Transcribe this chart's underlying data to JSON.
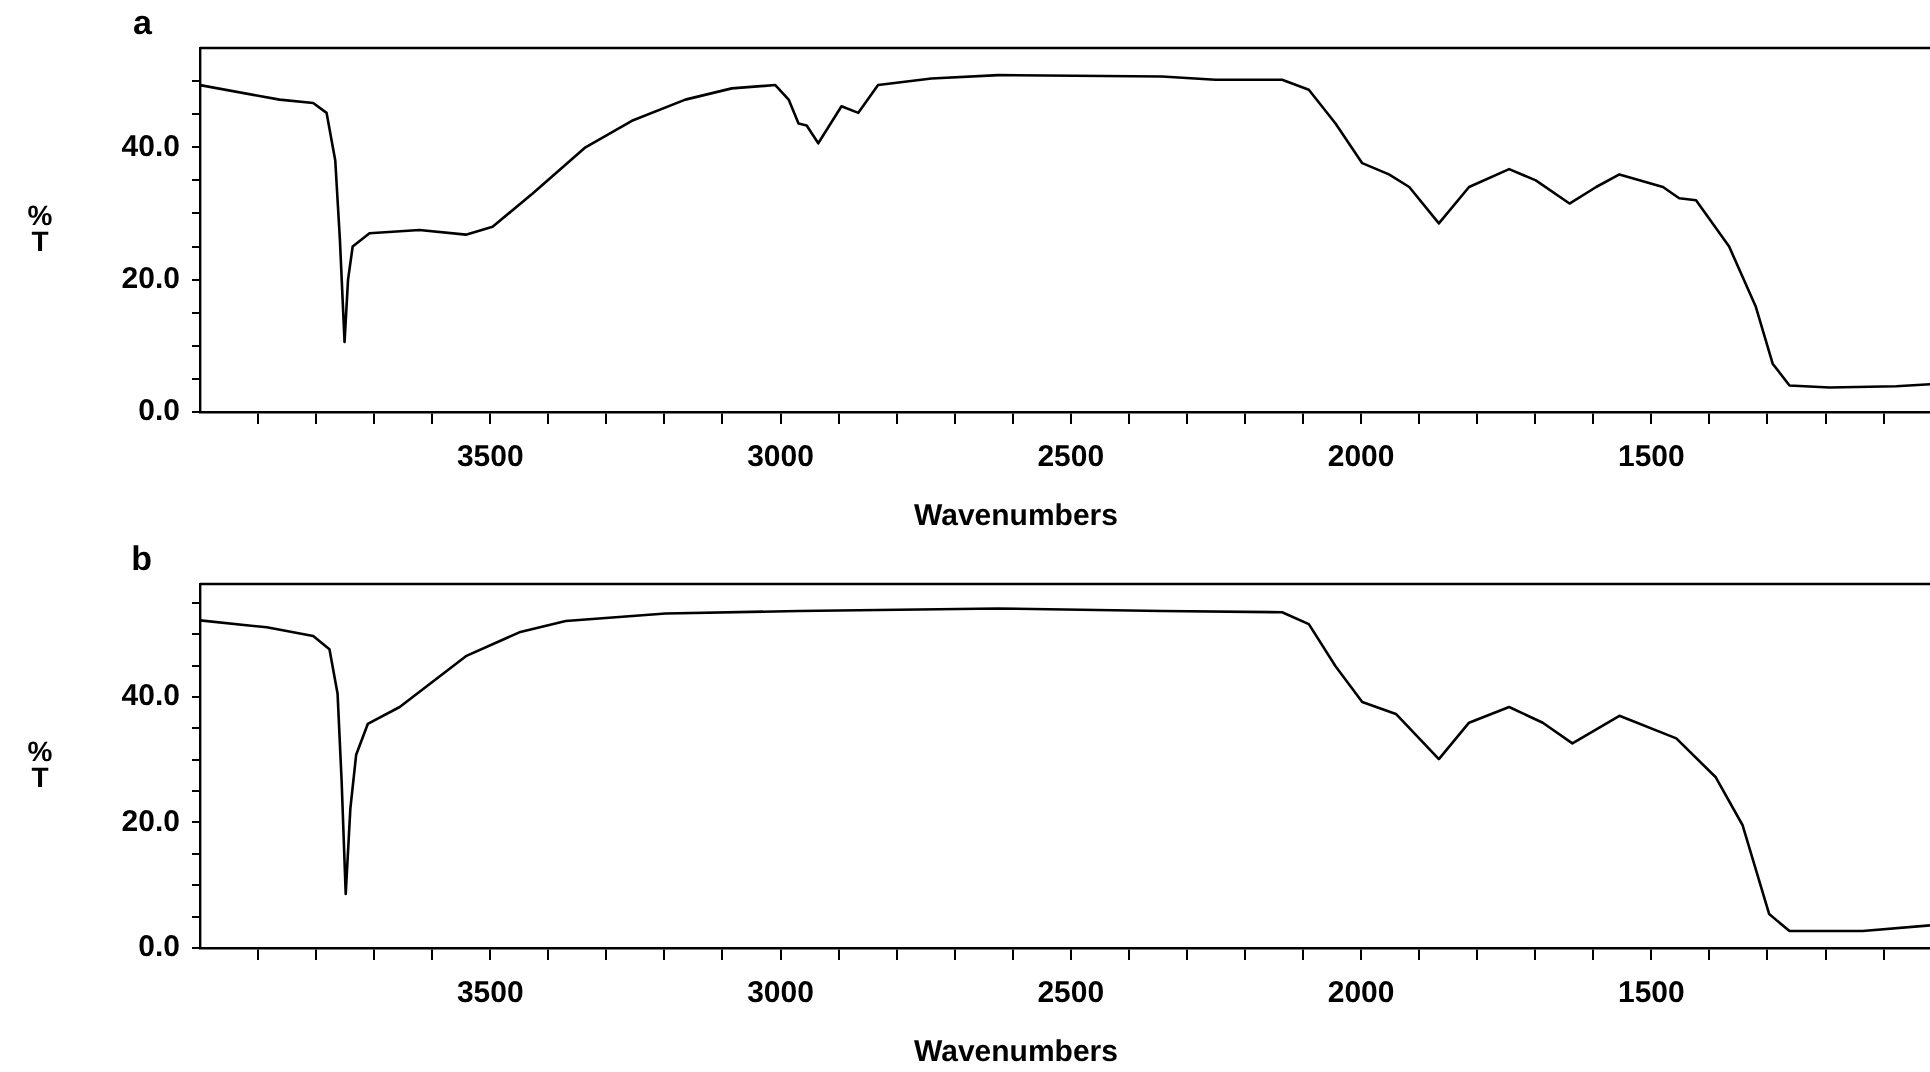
{
  "chart_data": [
    {
      "type": "line",
      "title": "a",
      "xlabel": "Wavenumbers",
      "ylabel": "%T",
      "xlim": [
        4000,
        1020
      ],
      "ylim": [
        0,
        55
      ],
      "grid": false,
      "legend": false,
      "marker": "none",
      "line_style": "solid",
      "xticks": [
        {
          "value": 3900,
          "label": null
        },
        {
          "value": 3800,
          "label": null
        },
        {
          "value": 3700,
          "label": null
        },
        {
          "value": 3600,
          "label": null
        },
        3500,
        {
          "value": 3400,
          "label": null
        },
        {
          "value": 3300,
          "label": null
        },
        {
          "value": 3200,
          "label": null
        },
        {
          "value": 3100,
          "label": null
        },
        3000,
        {
          "value": 2900,
          "label": null
        },
        {
          "value": 2800,
          "label": null
        },
        {
          "value": 2700,
          "label": null
        },
        {
          "value": 2600,
          "label": null
        },
        2500,
        {
          "value": 2400,
          "label": null
        },
        {
          "value": 2300,
          "label": null
        },
        {
          "value": 2200,
          "label": null
        },
        {
          "value": 2100,
          "label": null
        },
        2000,
        {
          "value": 1900,
          "label": null
        },
        {
          "value": 1800,
          "label": null
        },
        {
          "value": 1700,
          "label": null
        },
        {
          "value": 1600,
          "label": null
        },
        1500,
        {
          "value": 1400,
          "label": null
        },
        {
          "value": 1300,
          "label": null
        },
        {
          "value": 1200,
          "label": null
        },
        {
          "value": 1100,
          "label": null
        }
      ],
      "yticks": [
        {
          "value": 0,
          "label": "0.0"
        },
        {
          "value": 5,
          "label": null
        },
        {
          "value": 10,
          "label": null
        },
        {
          "value": 15,
          "label": null
        },
        {
          "value": 20,
          "label": "20.0"
        },
        {
          "value": 25,
          "label": null
        },
        {
          "value": 30,
          "label": null
        },
        {
          "value": 35,
          "label": null
        },
        {
          "value": 40,
          "label": "40.0"
        },
        {
          "value": 45,
          "label": null
        },
        {
          "value": 50,
          "label": null
        }
      ],
      "series": [
        {
          "color": "#000000",
          "x": [
            4000,
            3863,
            3805,
            3782,
            3767,
            3759,
            3751,
            3745,
            3737,
            3708,
            3622,
            3542,
            3496,
            3427,
            3336,
            3256,
            3164,
            3084,
            3009,
            2986,
            2969,
            2955,
            2935,
            2895,
            2866,
            2832,
            2740,
            2625,
            2343,
            2251,
            2136,
            2090,
            2044,
            1998,
            1952,
            1917,
            1866,
            1814,
            1745,
            1699,
            1641,
            1595,
            1555,
            1480,
            1452,
            1423,
            1366,
            1320,
            1291,
            1262,
            1193,
            1078,
            1020
          ],
          "values": [
            49.4,
            47.2,
            46.7,
            45.2,
            38,
            26,
            10.6,
            20,
            25,
            27,
            27.5,
            26.8,
            28,
            33,
            40,
            44,
            47.2,
            48.9,
            49.4,
            47.2,
            43.6,
            43.3,
            40.6,
            46.2,
            45.2,
            49.4,
            50.4,
            50.9,
            50.7,
            50.2,
            50.2,
            48.7,
            43.6,
            37.6,
            35.9,
            34,
            28.5,
            34,
            36.7,
            35,
            31.5,
            34,
            35.9,
            34,
            32.3,
            32,
            25,
            15.9,
            7.3,
            4,
            3.7,
            3.9,
            4.2
          ]
        }
      ]
    },
    {
      "type": "line",
      "title": "b",
      "xlabel": "Wavenumbers",
      "ylabel": "%T",
      "xlim": [
        4000,
        1020
      ],
      "ylim": [
        0,
        58
      ],
      "grid": false,
      "legend": false,
      "marker": "none",
      "line_style": "solid",
      "xticks": [
        {
          "value": 3900,
          "label": null
        },
        {
          "value": 3800,
          "label": null
        },
        {
          "value": 3700,
          "label": null
        },
        {
          "value": 3600,
          "label": null
        },
        3500,
        {
          "value": 3400,
          "label": null
        },
        {
          "value": 3300,
          "label": null
        },
        {
          "value": 3200,
          "label": null
        },
        {
          "value": 3100,
          "label": null
        },
        3000,
        {
          "value": 2900,
          "label": null
        },
        {
          "value": 2800,
          "label": null
        },
        {
          "value": 2700,
          "label": null
        },
        {
          "value": 2600,
          "label": null
        },
        2500,
        {
          "value": 2400,
          "label": null
        },
        {
          "value": 2300,
          "label": null
        },
        {
          "value": 2200,
          "label": null
        },
        {
          "value": 2100,
          "label": null
        },
        2000,
        {
          "value": 1900,
          "label": null
        },
        {
          "value": 1800,
          "label": null
        },
        {
          "value": 1700,
          "label": null
        },
        {
          "value": 1600,
          "label": null
        },
        1500,
        {
          "value": 1400,
          "label": null
        },
        {
          "value": 1300,
          "label": null
        },
        {
          "value": 1200,
          "label": null
        },
        {
          "value": 1100,
          "label": null
        }
      ],
      "yticks": [
        {
          "value": 0,
          "label": "0.0"
        },
        {
          "value": 5,
          "label": null
        },
        {
          "value": 10,
          "label": null
        },
        {
          "value": 15,
          "label": null
        },
        {
          "value": 20,
          "label": "20.0"
        },
        {
          "value": 25,
          "label": null
        },
        {
          "value": 30,
          "label": null
        },
        {
          "value": 35,
          "label": null
        },
        {
          "value": 40,
          "label": "40.0"
        },
        {
          "value": 45,
          "label": null
        },
        {
          "value": 50,
          "label": null
        },
        {
          "value": 55,
          "label": null
        }
      ],
      "series": [
        {
          "color": "#000000",
          "x": [
            4000,
            3885,
            3805,
            3777,
            3763,
            3756,
            3749,
            3741,
            3731,
            3711,
            3656,
            3542,
            3450,
            3370,
            3198,
            2969,
            2625,
            2343,
            2136,
            2090,
            2044,
            1998,
            1940,
            1866,
            1814,
            1745,
            1687,
            1636,
            1555,
            1457,
            1389,
            1343,
            1297,
            1262,
            1136,
            1020
          ],
          "values": [
            52.2,
            51.1,
            49.7,
            47.6,
            40.5,
            26.5,
            8.6,
            22.2,
            30.8,
            35.7,
            38.4,
            46.5,
            50.3,
            52.1,
            53.3,
            53.7,
            54.1,
            53.7,
            53.5,
            51.6,
            44.9,
            39.2,
            37.3,
            30.1,
            35.9,
            38.4,
            35.9,
            32.6,
            37,
            33.4,
            27.2,
            19.6,
            5.4,
            2.7,
            2.7,
            3.6
          ]
        }
      ]
    }
  ]
}
